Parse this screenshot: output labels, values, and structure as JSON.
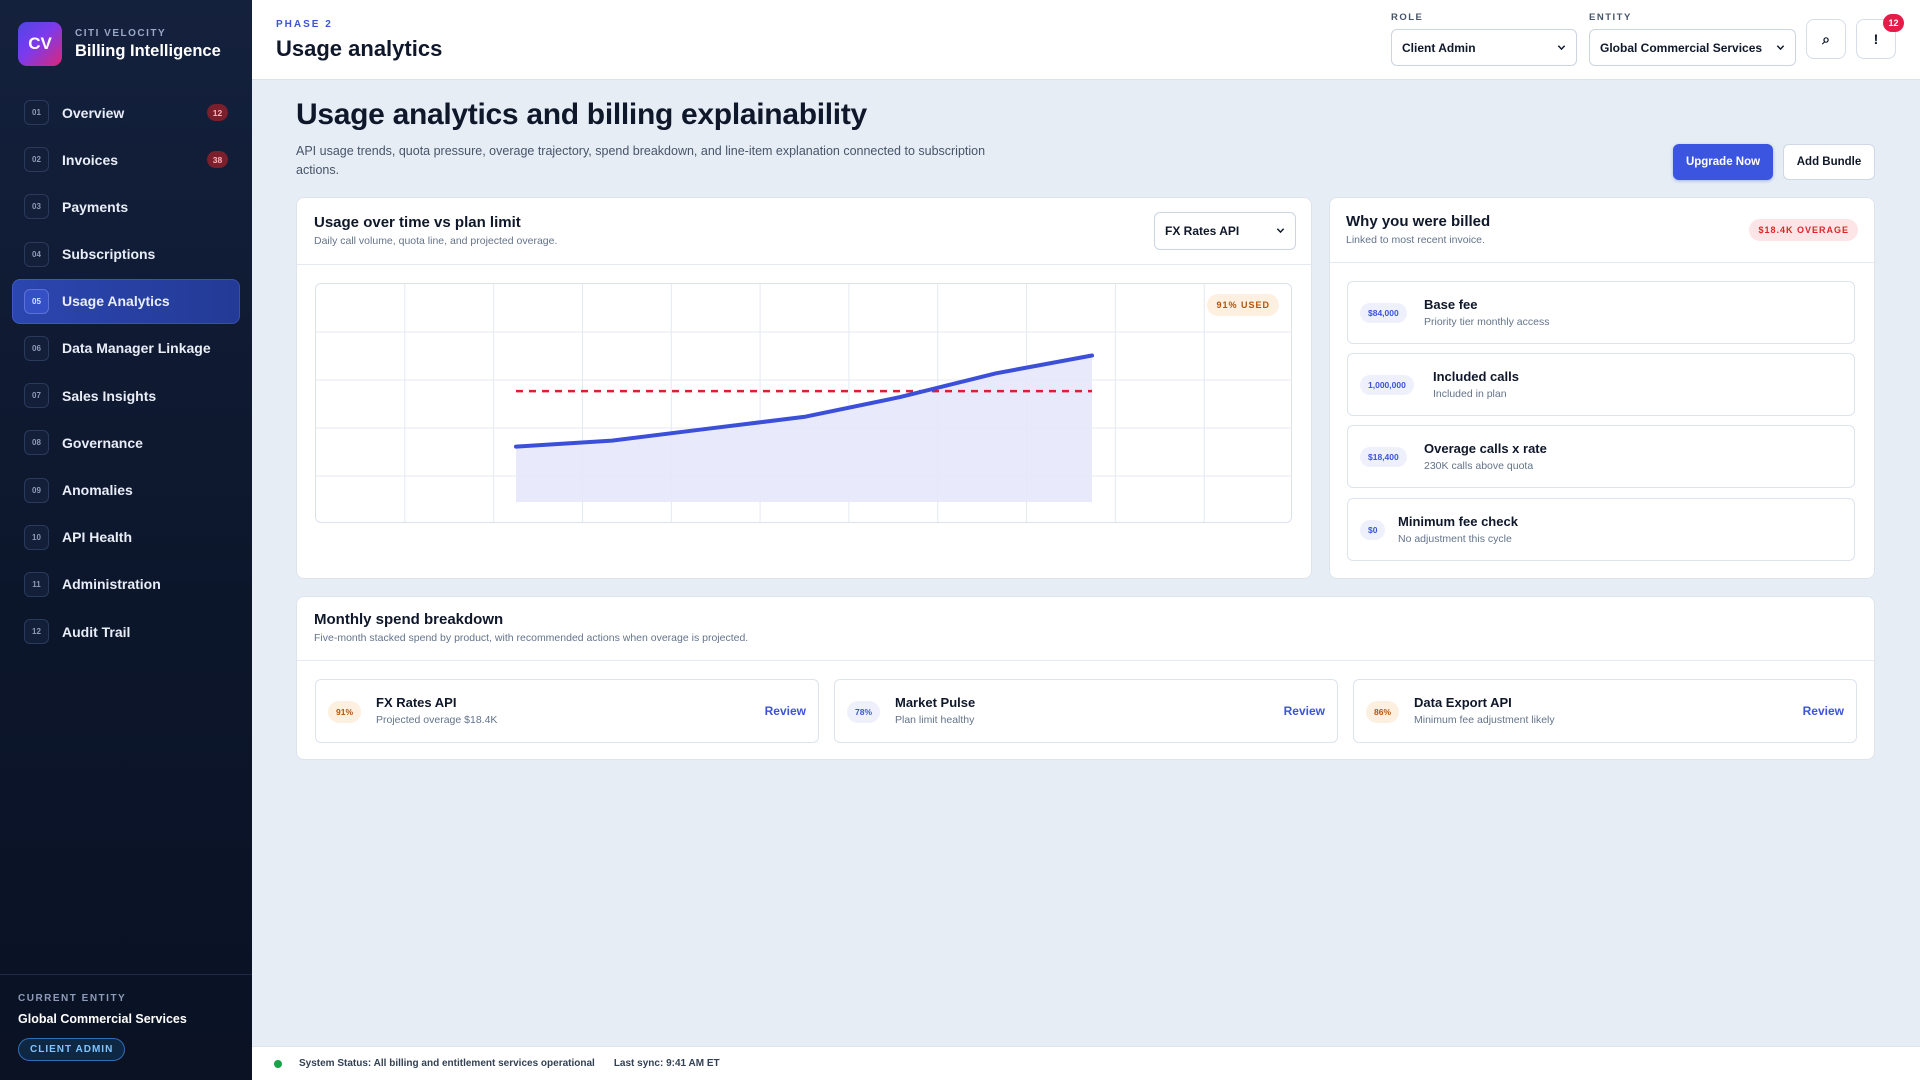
{
  "sidebar": {
    "logo_text": "CV",
    "brand_kicker": "CITI VELOCITY",
    "brand_title": "Billing Intelligence",
    "items": [
      {
        "num": "01",
        "label": "Overview",
        "badge": "12"
      },
      {
        "num": "02",
        "label": "Invoices",
        "badge": "38"
      },
      {
        "num": "03",
        "label": "Payments"
      },
      {
        "num": "04",
        "label": "Subscriptions"
      },
      {
        "num": "05",
        "label": "Usage Analytics",
        "active": true
      },
      {
        "num": "06",
        "label": "Data Manager Linkage"
      },
      {
        "num": "07",
        "label": "Sales Insights"
      },
      {
        "num": "08",
        "label": "Governance"
      },
      {
        "num": "09",
        "label": "Anomalies"
      },
      {
        "num": "10",
        "label": "API Health"
      },
      {
        "num": "11",
        "label": "Administration"
      },
      {
        "num": "12",
        "label": "Audit Trail"
      }
    ],
    "footer": {
      "kicker": "CURRENT ENTITY",
      "entity": "Global Commercial Services",
      "role": "CLIENT ADMIN"
    }
  },
  "header": {
    "phase": "PHASE 2",
    "title": "Usage analytics",
    "role_label": "ROLE",
    "role_value": "Client Admin",
    "entity_label": "ENTITY",
    "entity_value": "Global Commercial Services",
    "search_icon_glyph": "⌕",
    "alert_icon_glyph": "!",
    "notification_count": "12"
  },
  "main": {
    "title": "Usage analytics and billing explainability",
    "subtitle": "API usage trends, quota pressure, overage trajectory, spend breakdown, and line-item explanation connected to subscription actions.",
    "upgrade_label": "Upgrade Now",
    "bundle_label": "Add Bundle"
  },
  "usage_card": {
    "title": "Usage over time vs plan limit",
    "subtitle": "Daily call volume, quota line, and projected overage.",
    "api_select": "FX Rates API",
    "used_badge": "91% USED"
  },
  "chart_data": {
    "type": "area",
    "series": [
      {
        "values": [
          0.28,
          0.31,
          0.37,
          0.43,
          0.53,
          0.65,
          0.74
        ]
      }
    ],
    "plan_limit": 0.56,
    "ylim": [
      0,
      1
    ],
    "grid": true,
    "colors": {
      "line": "#3b4fd8",
      "fill": "#e6e8fb",
      "limit": "#e11d2e"
    }
  },
  "billed_card": {
    "title": "Why you were billed",
    "subtitle": "Linked to most recent invoice.",
    "overage_badge": "$18.4K OVERAGE",
    "items": [
      {
        "amount": "$84,000",
        "label": "Base fee",
        "sub": "Priority tier monthly access"
      },
      {
        "amount": "1,000,000",
        "label": "Included calls",
        "sub": "Included in plan"
      },
      {
        "amount": "$18,400",
        "label": "Overage calls x rate",
        "sub": "230K calls above quota"
      },
      {
        "amount": "$0",
        "label": "Minimum fee check",
        "sub": "No adjustment this cycle"
      }
    ]
  },
  "spend_card": {
    "title": "Monthly spend breakdown",
    "subtitle": "Five-month stacked spend by product, with recommended actions when overage is projected.",
    "items": [
      {
        "pct": "91%",
        "name": "FX Rates API",
        "sub": "Projected overage $18.4K",
        "action": "Review",
        "tone": "warm"
      },
      {
        "pct": "78%",
        "name": "Market Pulse",
        "sub": "Plan limit healthy",
        "action": "Review",
        "tone": "cool"
      },
      {
        "pct": "86%",
        "name": "Data Export API",
        "sub": "Minimum fee adjustment likely",
        "action": "Review",
        "tone": "warm"
      }
    ]
  },
  "status": {
    "text": "System Status: All billing and entitlement services operational",
    "sync": "Last sync: 9:41 AM ET"
  }
}
